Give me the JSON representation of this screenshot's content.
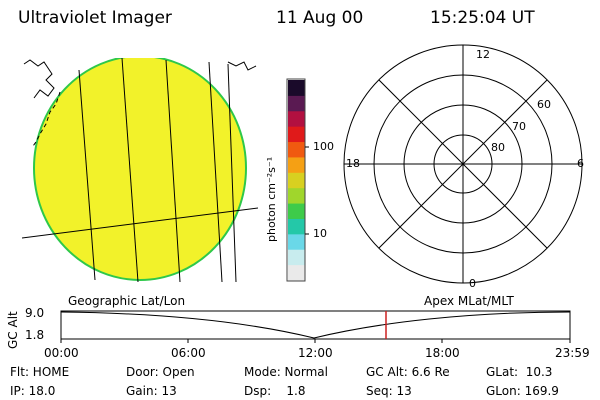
{
  "header": {
    "instrument": "Ultraviolet Imager",
    "date": "11 Aug 00",
    "time": "15:25:04 UT"
  },
  "globe": {
    "fill_color": "#f2f22a",
    "edge_color": "#2ec84a"
  },
  "colorbar": {
    "unit_label": "photon cm⁻²s⁻¹",
    "tick_labels": [
      "100",
      "10"
    ],
    "colors": [
      "#1a0a2a",
      "#5a1a52",
      "#b21040",
      "#e01a1a",
      "#f05a10",
      "#f5a014",
      "#d8d020",
      "#a0d62c",
      "#3ecb4a",
      "#24c8a8",
      "#6ad8e8",
      "#c8ecee",
      "#eaeaea"
    ]
  },
  "polar": {
    "mlt_labels": {
      "top": "12",
      "left": "18",
      "right": "6",
      "bottom": "0"
    },
    "lat_labels": [
      "60",
      "70",
      "80"
    ]
  },
  "timeline": {
    "left_title": "Geographic Lat/Lon",
    "right_title": "Apex MLat/MLT",
    "axis_label": "GC Alt",
    "ymax_label": "9.0",
    "ymin_label": "1.8",
    "time_ticks": [
      "00:00",
      "06:00",
      "12:00",
      "18:00",
      "23:59"
    ],
    "marker_color": "#cc2020"
  },
  "status": {
    "flt": "Flt: HOME",
    "ip": "IP: 18.0",
    "door": "Door: Open",
    "gain": "Gain: 13",
    "mode": "Mode: Normal",
    "dsp": "Dsp:    1.8",
    "gcalt": "GC Alt: 6.6 Re",
    "seq": "Seq: 13",
    "glat": "GLat:  10.3",
    "glon": "GLon: 169.9"
  }
}
